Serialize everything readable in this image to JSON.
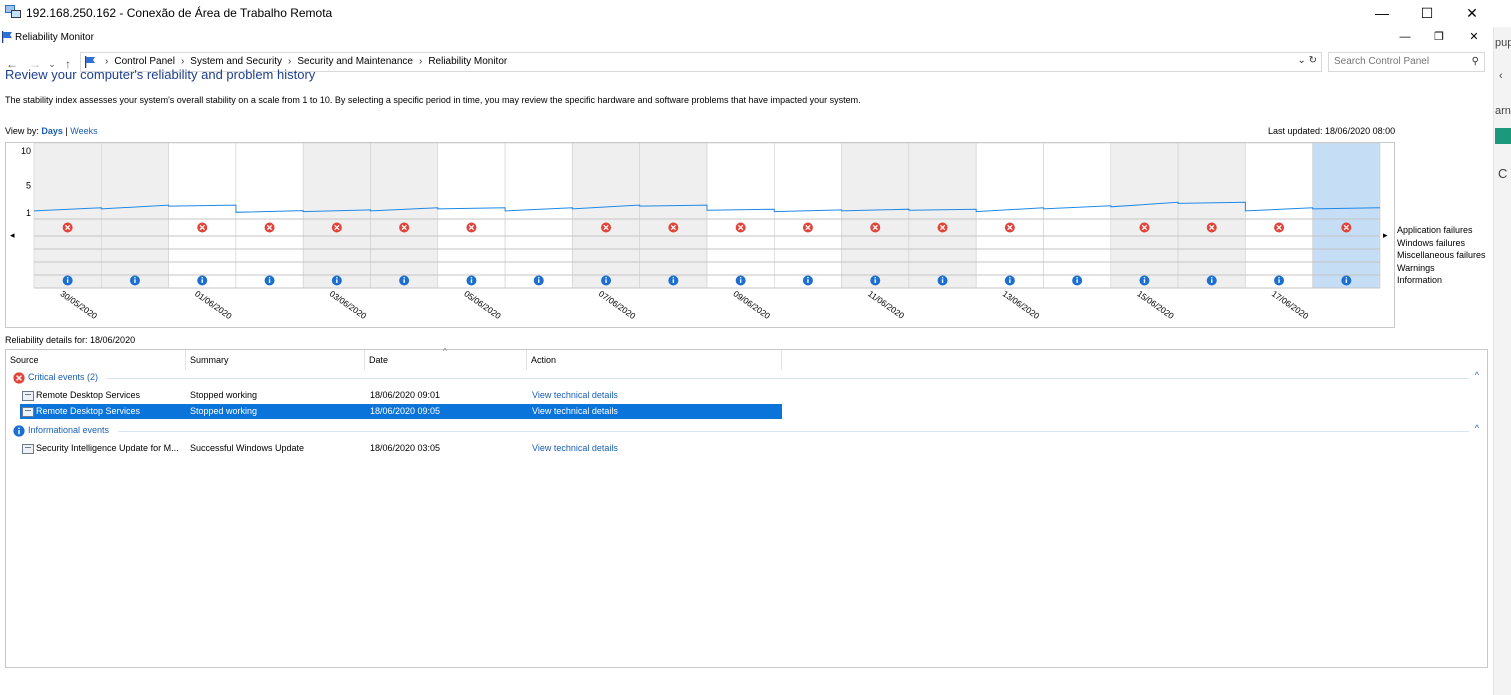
{
  "rdp": {
    "title": "192.168.250.162 - Conexão de Área de Trabalho Remota",
    "minimize": "—",
    "maximize": "☐",
    "close": "✕"
  },
  "window": {
    "title": "Reliability Monitor",
    "minimize": "—",
    "restore": "❐",
    "close": "✕"
  },
  "nav": {
    "back": "←",
    "forward": "→",
    "recent": "⌄",
    "up": "↑"
  },
  "breadcrumbs": [
    "Control Panel",
    "System and Security",
    "Security and Maintenance",
    "Reliability Monitor"
  ],
  "breadcrumb_sep": "›",
  "addr_right": "⌄ ↻",
  "search": {
    "placeholder": "Search Control Panel",
    "icon": "⚲"
  },
  "peek_texts": [
    "pup",
    "‹",
    "arn",
    "C"
  ],
  "page": {
    "heading": "Review your computer's reliability and problem history",
    "description": "The stability index assesses your system's overall stability on a scale from 1 to 10. By selecting a specific period in time, you may review the specific hardware and software problems that have impacted your system.",
    "view_by_label": "View by:",
    "view_days": "Days",
    "view_sep": "|",
    "view_weeks": "Weeks",
    "last_updated": "Last updated: 18/06/2020 08:00"
  },
  "chart_data": {
    "type": "line",
    "title": "",
    "y_ticks": [
      "10",
      "5",
      "1"
    ],
    "ylim": [
      1,
      10
    ],
    "x_labels": [
      "30/05/2020",
      "01/06/2020",
      "03/06/2020",
      "05/06/2020",
      "07/06/2020",
      "09/06/2020",
      "11/06/2020",
      "13/06/2020",
      "15/06/2020",
      "17/06/2020"
    ],
    "days": [
      "30/05",
      "31/05",
      "01/06",
      "02/06",
      "03/06",
      "04/06",
      "05/06",
      "06/06",
      "07/06",
      "08/06",
      "09/06",
      "10/06",
      "11/06",
      "12/06",
      "13/06",
      "14/06",
      "15/06",
      "16/06",
      "17/06",
      "18/06"
    ],
    "stability_index": [
      1.3,
      1.6,
      2.0,
      1.1,
      1.2,
      1.3,
      1.6,
      1.3,
      1.6,
      2.0,
      1.4,
      1.2,
      1.3,
      1.4,
      1.2,
      1.6,
      1.9,
      2.4,
      1.3,
      1.6
    ],
    "application_failures": [
      true,
      false,
      true,
      true,
      true,
      true,
      true,
      false,
      true,
      true,
      true,
      true,
      true,
      true,
      true,
      false,
      true,
      true,
      true,
      true
    ],
    "information": [
      true,
      true,
      true,
      true,
      true,
      true,
      true,
      true,
      true,
      true,
      true,
      true,
      true,
      true,
      true,
      true,
      true,
      true,
      true,
      true
    ],
    "selected_day": 19,
    "legend": [
      "Application failures",
      "Windows failures",
      "Miscellaneous failures",
      "Warnings",
      "Information"
    ],
    "colors": {
      "line": "#1e88e5",
      "error": "#e0443a",
      "info": "#1a6fd1",
      "shade": "#efefef",
      "selected": "#c5def5"
    },
    "left_arrow": "◂",
    "right_arrow": "▸"
  },
  "details": {
    "for_label": "Reliability details for: 18/06/2020",
    "columns": [
      "Source",
      "Summary",
      "Date",
      "Action"
    ],
    "sort_indicator": "^",
    "groups": [
      {
        "label": "Critical events (2)",
        "icon": "error-icon",
        "collapse": "^",
        "rows": [
          {
            "source": "Remote Desktop Services",
            "summary": "Stopped working",
            "date": "18/06/2020 09:01",
            "action": "View  technical details",
            "selected": false
          },
          {
            "source": "Remote Desktop Services",
            "summary": "Stopped working",
            "date": "18/06/2020 09:05",
            "action": "View  technical details",
            "selected": true
          }
        ]
      },
      {
        "label": "Informational events",
        "icon": "info-icon",
        "collapse": "^",
        "rows": [
          {
            "source": "Security Intelligence Update for M...",
            "summary": "Successful Windows Update",
            "date": "18/06/2020 03:05",
            "action": "View  technical details",
            "selected": false
          }
        ]
      }
    ]
  }
}
